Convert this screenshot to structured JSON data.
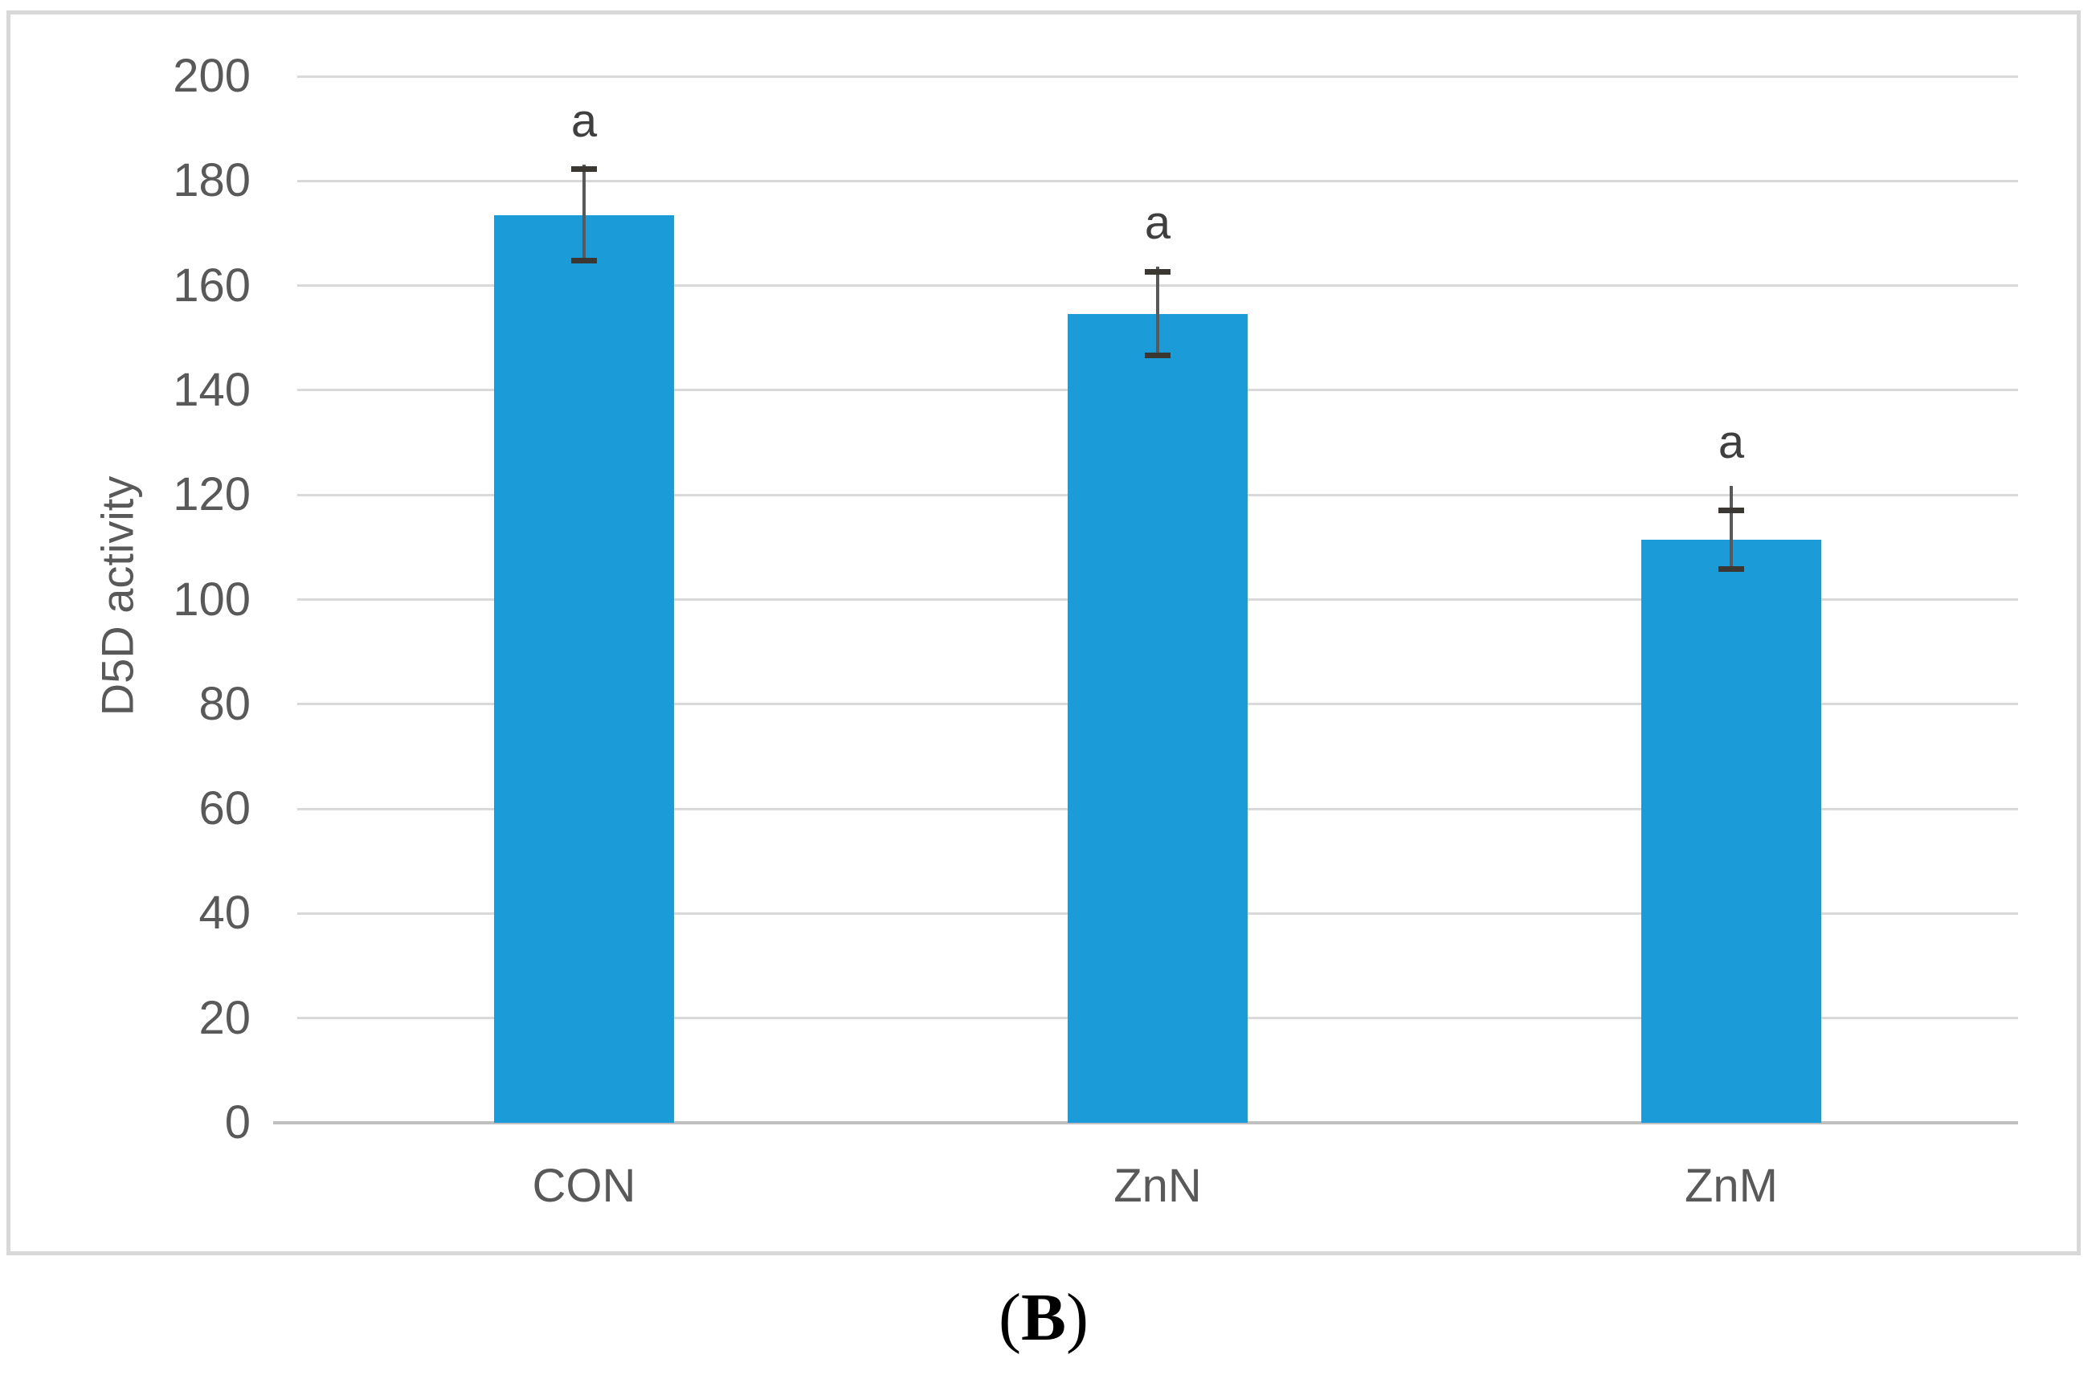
{
  "figure": {
    "caption_open": "(",
    "caption_letter": "B",
    "caption_close": ")"
  },
  "chart_data": {
    "type": "bar",
    "title": "",
    "xlabel": "",
    "ylabel": "D5D activity",
    "categories": [
      "CON",
      "ZnN",
      "ZnM"
    ],
    "values": [
      173.5,
      154.5,
      111.5
    ],
    "error_bars": [
      {
        "upper": 182.3,
        "lower": 164.9,
        "whisker_top": 183.1
      },
      {
        "upper": 162.7,
        "lower": 146.7,
        "whisker_top": 163.6
      },
      {
        "upper": 117.1,
        "lower": 105.9,
        "whisker_top": 121.7
      }
    ],
    "annotations": [
      "a",
      "a",
      "a"
    ],
    "ylim": [
      0,
      200
    ],
    "yticks": [
      0,
      20,
      40,
      60,
      80,
      100,
      120,
      140,
      160,
      180,
      200
    ],
    "grid": true,
    "legend_position": "none",
    "colors": {
      "bar": "#1B9CD8",
      "gridline": "#D9D9D9",
      "axis_line": "#BFBFBF",
      "tick_text": "#595959",
      "axis_title_text": "#595959",
      "annotation_text": "#3F3F3F",
      "error_whisker": "#58595B",
      "error_cap": "#3B3834",
      "panel_border": "#D8D8D8",
      "caption_text": "#000000"
    }
  }
}
